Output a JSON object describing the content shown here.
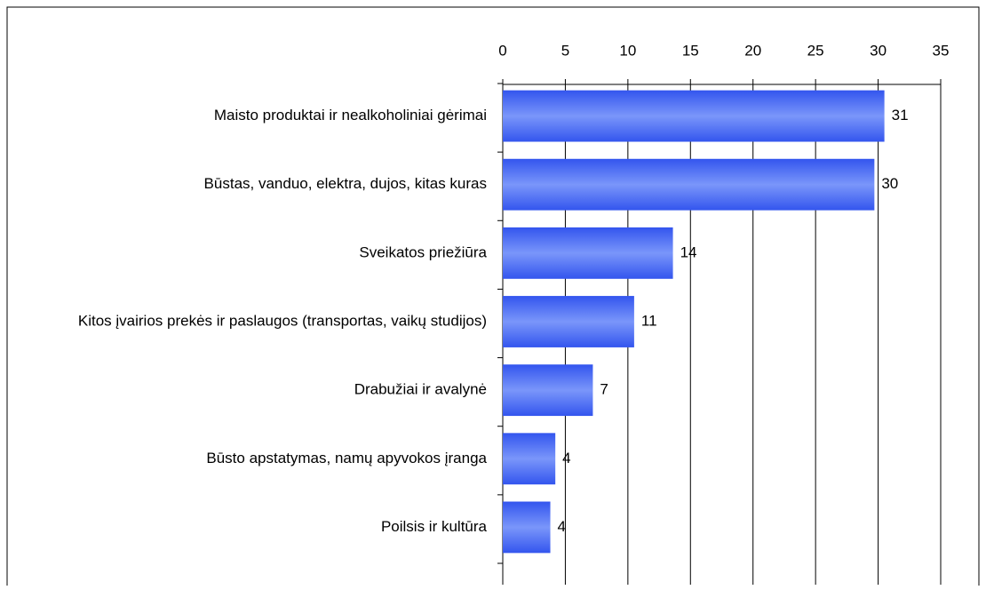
{
  "chart_data": {
    "type": "bar",
    "orientation": "horizontal",
    "categories": [
      "Maisto produktai ir nealkoholiniai gėrimai",
      "Būstas, vanduo, elektra, dujos, kitas kuras",
      "Sveikatos priežiūra",
      "Kitos įvairios prekės ir paslaugos (transportas, vaikų studijos)",
      "Drabužiai ir avalynė",
      "Būsto apstatymas, namų apyvokos įranga",
      "Poilsis ir kultūra"
    ],
    "values": [
      30.5,
      29.7,
      13.6,
      10.5,
      7.2,
      4.2,
      3.8
    ],
    "value_labels": [
      "31",
      "30",
      "14",
      "11",
      "7",
      "4",
      "4"
    ],
    "color": "#4a6cf4",
    "xlim": [
      0,
      35
    ],
    "xticks": [
      0,
      5,
      10,
      15,
      20,
      25,
      30,
      35
    ],
    "grid": true
  }
}
